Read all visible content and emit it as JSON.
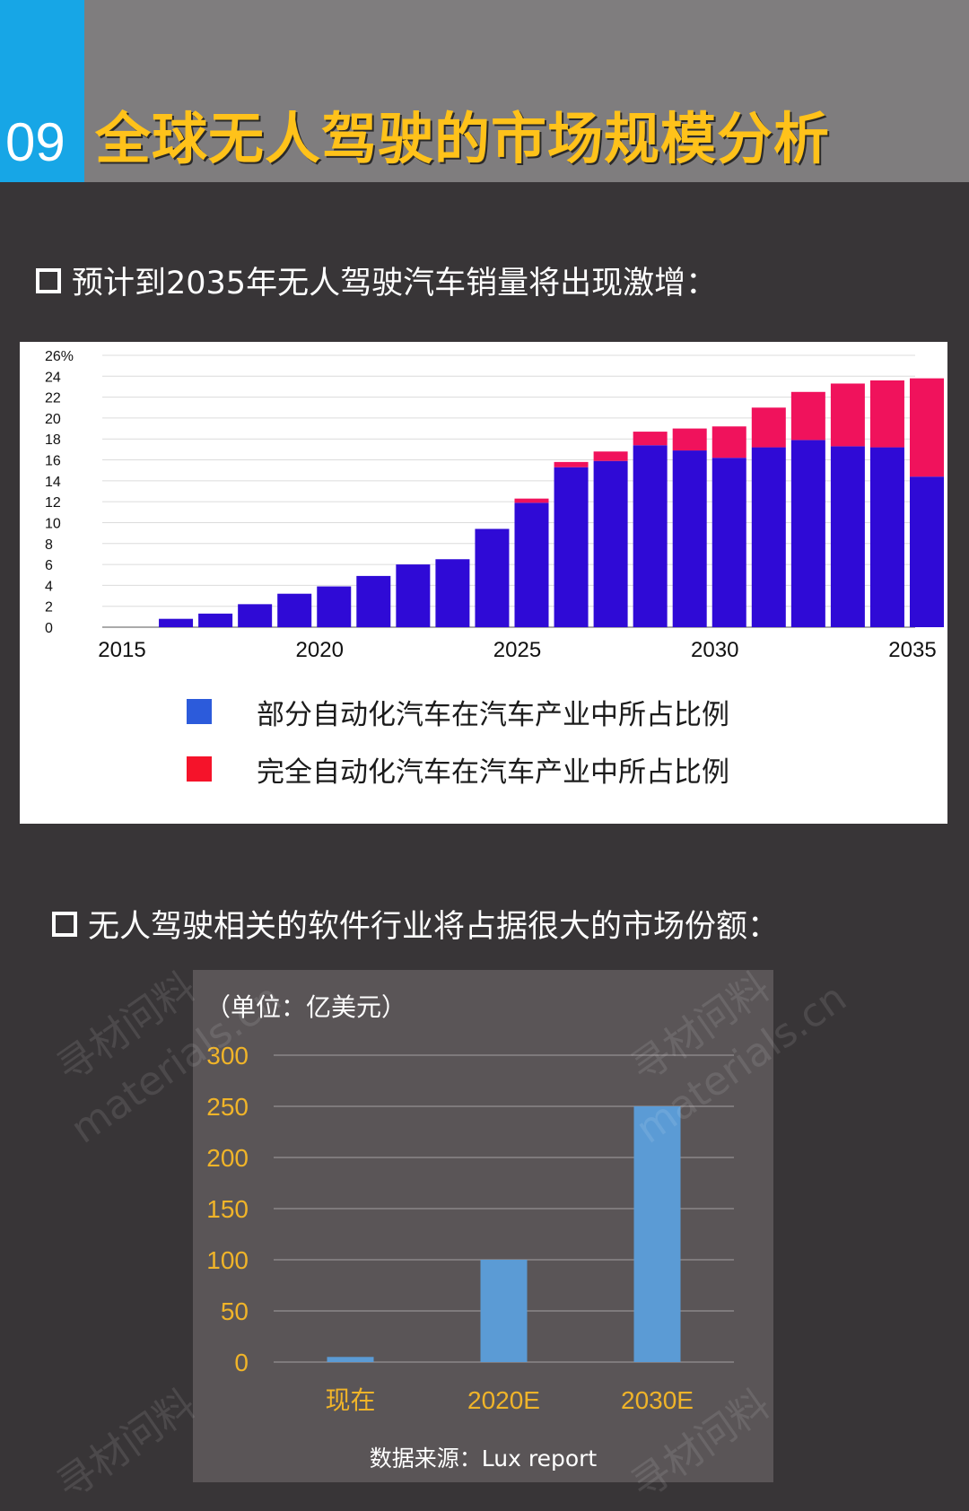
{
  "header": {
    "number": "09",
    "title": "全球无人驾驶的市场规模分析"
  },
  "section1": {
    "title": "预计到2035年无人驾驶汽车销量将出现激增："
  },
  "section2": {
    "title": "无人驾驶相关的软件行业将占据很大的市场份额："
  },
  "watermarks": [
    "寻材问料",
    "materials.cn"
  ],
  "chart_data": [
    {
      "type": "bar",
      "stacked": true,
      "x": [
        2016,
        2017,
        2018,
        2019,
        2020,
        2021,
        2022,
        2023,
        2024,
        2025,
        2026,
        2027,
        2028,
        2029,
        2030,
        2031,
        2032,
        2033,
        2034,
        2035
      ],
      "xticks": [
        "2015",
        "2020",
        "2025",
        "2030",
        "2035"
      ],
      "yticks": [
        "26%",
        "24",
        "22",
        "20",
        "18",
        "16",
        "14",
        "12",
        "10",
        "8",
        "6",
        "4",
        "2",
        "0"
      ],
      "ylim": [
        0,
        26
      ],
      "grid": true,
      "series": [
        {
          "name": "部分自动化汽车在汽车产业中所占比例",
          "color": "#2f0ad6",
          "values": [
            0.8,
            1.3,
            2.2,
            3.2,
            3.9,
            4.9,
            6.0,
            6.5,
            9.4,
            11.9,
            15.3,
            15.9,
            17.4,
            16.9,
            16.2,
            17.2,
            17.9,
            17.3,
            17.2,
            14.4
          ]
        },
        {
          "name": "完全自动化汽车在汽车产业中所占比例",
          "color": "#f0125c",
          "values": [
            0,
            0,
            0,
            0,
            0,
            0,
            0,
            0,
            0,
            0.4,
            0.5,
            0.9,
            1.3,
            2.1,
            3.0,
            3.8,
            4.6,
            6.0,
            6.4,
            9.4
          ]
        }
      ],
      "legend": {
        "position": "bottom",
        "colors": [
          "#2c5bdb",
          "#f5132a"
        ],
        "labels": [
          "部分自动化汽车在汽车产业中所占比例",
          "完全自动化汽车在汽车产业中所占比例"
        ]
      }
    },
    {
      "type": "bar",
      "categories": [
        "现在",
        "2020E",
        "2030E"
      ],
      "values": [
        5,
        100,
        250
      ],
      "yticks": [
        "300",
        "250",
        "200",
        "150",
        "100",
        "50",
        "0"
      ],
      "ylim": [
        0,
        300
      ],
      "grid": true,
      "color": "#5b9bd5",
      "tick_color": "#f0b429",
      "unit_label": "（单位：亿美元）",
      "source": "数据来源：Lux report"
    }
  ]
}
